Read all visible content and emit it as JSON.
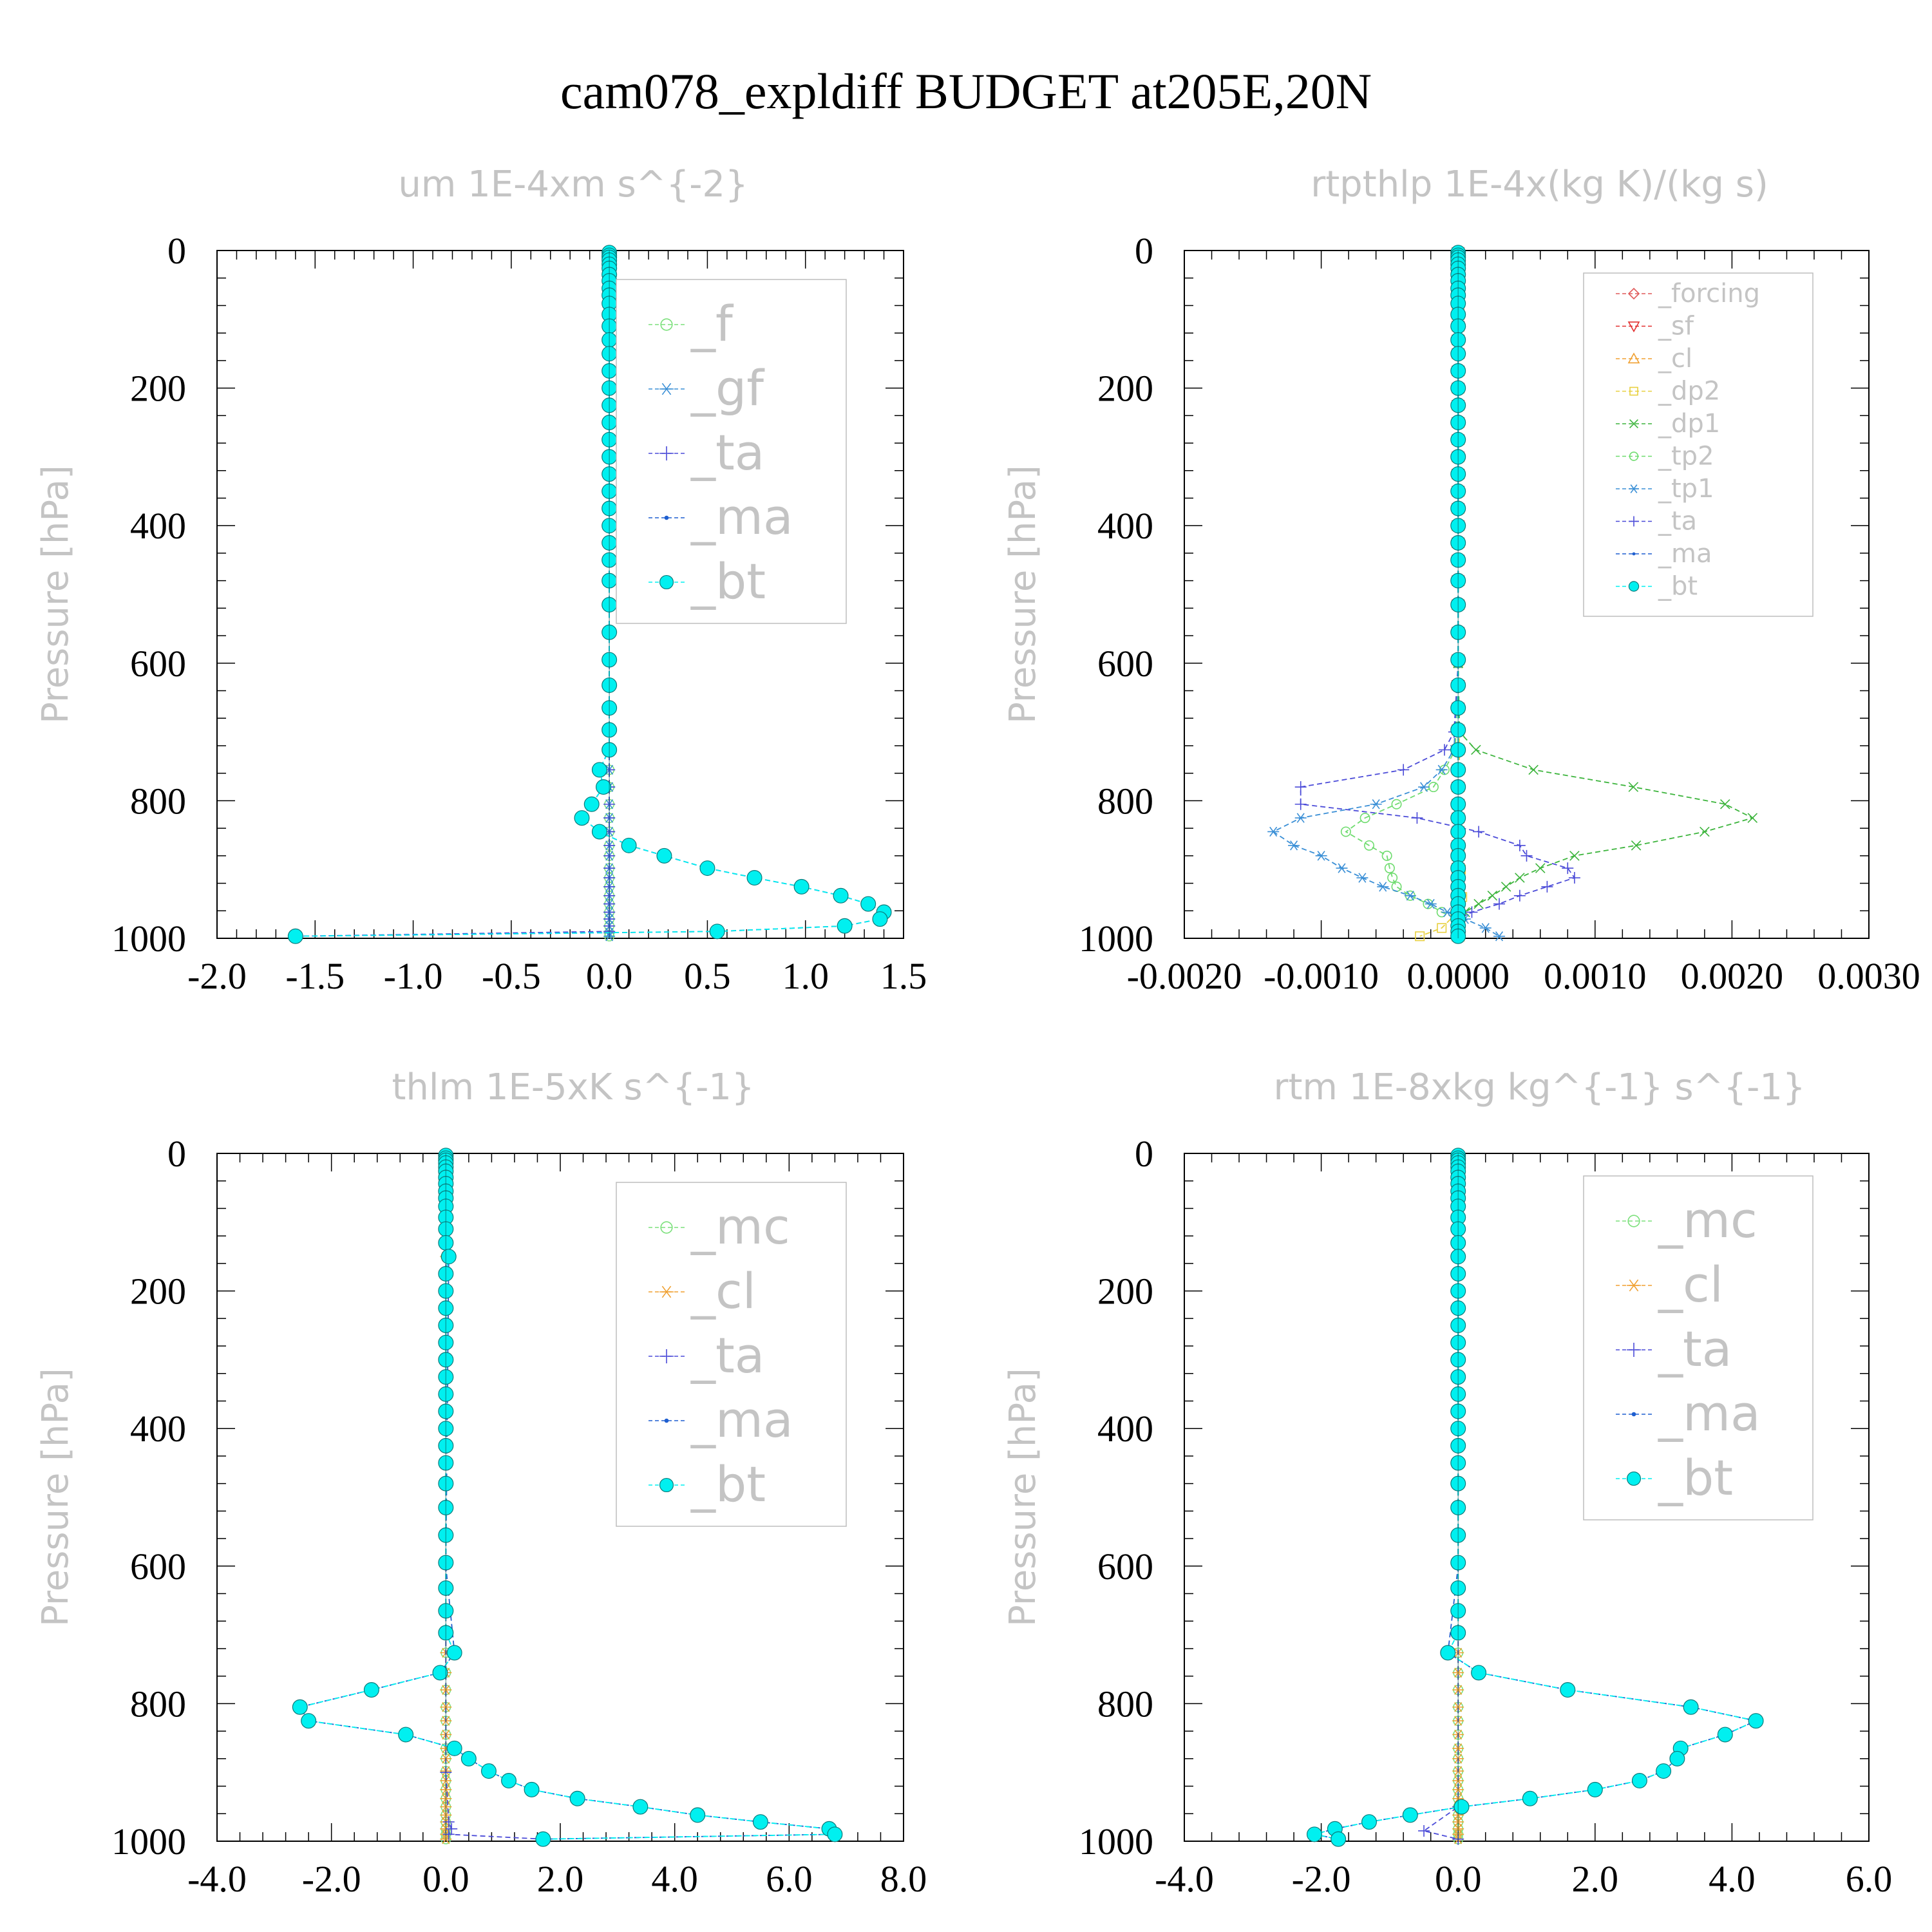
{
  "figure_title": "cam078_expldiff  BUDGET at205E,20N",
  "colors": {
    "_f": "#7be07b",
    "_gf": "#3a8fd6",
    "_ta": "#4b4bd8",
    "_ma": "#1f5fd0",
    "_bt": "#00f0f0",
    "_forcing": "#e05a5a",
    "_sf": "#e23030",
    "_cl": "#f0a030",
    "_dp2": "#e8d040",
    "_dp1": "#3cb43c",
    "_tp2": "#6fdc6f",
    "_tp1": "#3a8fd6",
    "_mc": "#7be07b"
  },
  "chart_data": [
    {
      "type": "line",
      "title": "um   1E-4xm s^{-2}",
      "ylabel": "Pressure [hPa]",
      "xlim": [
        -2.0,
        1.5
      ],
      "ylim": [
        1000,
        0
      ],
      "xticks": [
        "-2.0",
        "-1.5",
        "-1.0",
        "-0.5",
        "0.0",
        "0.5",
        "1.0",
        "1.5"
      ],
      "yticks": [
        "0",
        "200",
        "400",
        "600",
        "800",
        "1000"
      ],
      "legend_position": "top-right",
      "p_levels": [
        3,
        7,
        10,
        14,
        20,
        26,
        35,
        44,
        55,
        65,
        77,
        93,
        110,
        130,
        150,
        175,
        200,
        225,
        250,
        275,
        300,
        325,
        350,
        375,
        400,
        425,
        450,
        480,
        515,
        555,
        595,
        632,
        665,
        697,
        726,
        755,
        780,
        805,
        825,
        845,
        865,
        880,
        898,
        912,
        925,
        938,
        950,
        962,
        972,
        982,
        992,
        997
      ],
      "series": [
        {
          "name": "_f",
          "marker": "circle-open",
          "values": "zero"
        },
        {
          "name": "_gf",
          "marker": "asterisk",
          "values": "zero"
        },
        {
          "name": "_ta",
          "marker": "plus",
          "p": [
            3,
            200,
            400,
            600,
            725,
            755,
            780,
            805,
            825,
            845,
            865,
            880,
            898,
            912,
            925,
            938,
            950,
            962,
            972,
            982,
            990,
            997
          ],
          "x": [
            0,
            0,
            0,
            0,
            0,
            0,
            0,
            0,
            0,
            0,
            0,
            0,
            0,
            0,
            0,
            0,
            0,
            0,
            0,
            0,
            0,
            -1.6
          ]
        },
        {
          "name": "_ma",
          "marker": "dot",
          "p": [
            3,
            200,
            400,
            600,
            725,
            755,
            780,
            805,
            825,
            845,
            865,
            880,
            898,
            912,
            925,
            938,
            950,
            962,
            972,
            982,
            990,
            997
          ],
          "x": [
            0,
            0,
            0,
            0,
            0,
            -0.05,
            -0.03,
            -0.09,
            -0.14,
            -0.05,
            0.1,
            0.28,
            0.5,
            0.74,
            0.98,
            1.18,
            1.32,
            1.4,
            1.38,
            1.2,
            0.55,
            -1.6
          ]
        },
        {
          "name": "_bt",
          "marker": "filled-circle",
          "p": [
            3,
            7,
            10,
            14,
            20,
            26,
            35,
            44,
            55,
            65,
            77,
            93,
            110,
            130,
            150,
            175,
            200,
            225,
            250,
            275,
            300,
            325,
            350,
            375,
            400,
            425,
            450,
            480,
            515,
            555,
            595,
            632,
            665,
            697,
            726,
            755,
            780,
            805,
            825,
            845,
            865,
            880,
            898,
            912,
            925,
            938,
            950,
            962,
            972,
            982,
            990,
            997
          ],
          "x": [
            0,
            0,
            0,
            0,
            0,
            0,
            0,
            0,
            0,
            0,
            0,
            0,
            0,
            0,
            0,
            0,
            0,
            0,
            0,
            0,
            0,
            0,
            0,
            0,
            0,
            0,
            0,
            0,
            0,
            0,
            0,
            0,
            0,
            0,
            0,
            -0.05,
            -0.03,
            -0.09,
            -0.14,
            -0.05,
            0.1,
            0.28,
            0.5,
            0.74,
            0.98,
            1.18,
            1.32,
            1.4,
            1.38,
            1.2,
            0.55,
            -1.6
          ]
        }
      ]
    },
    {
      "type": "line",
      "title": "rtpthlp   1E-4x(kg K)/(kg s)",
      "ylabel": "Pressure [hPa]",
      "xlim": [
        -0.002,
        0.003
      ],
      "ylim": [
        1000,
        0
      ],
      "xticks": [
        "-0.0020",
        "-0.0010",
        "0.0000",
        "0.0010",
        "0.0020",
        "0.0030"
      ],
      "yticks": [
        "0",
        "200",
        "400",
        "600",
        "800",
        "1000"
      ],
      "legend_position": "top-right",
      "p_levels": [
        3,
        7,
        10,
        14,
        20,
        26,
        35,
        44,
        55,
        65,
        77,
        93,
        110,
        130,
        150,
        175,
        200,
        225,
        250,
        275,
        300,
        325,
        350,
        375,
        400,
        425,
        450,
        480,
        515,
        555,
        595,
        632,
        665,
        697,
        726,
        755,
        780,
        805,
        825,
        845,
        865,
        880,
        898,
        912,
        925,
        938,
        950,
        962,
        972,
        982,
        990,
        997
      ],
      "series": [
        {
          "name": "_forcing",
          "marker": "diamond",
          "values": "zero"
        },
        {
          "name": "_sf",
          "marker": "triangle-down",
          "values": "zero"
        },
        {
          "name": "_cl",
          "marker": "triangle-up",
          "values": "zero"
        },
        {
          "name": "_dp2",
          "marker": "square",
          "p": [
            3,
            600,
            900,
            940,
            965,
            985,
            997
          ],
          "x": [
            0,
            0,
            2e-05,
            3e-05,
            -2e-05,
            -0.00012,
            -0.00028
          ]
        },
        {
          "name": "_dp1",
          "marker": "cross",
          "p": [
            3,
            600,
            700,
            726,
            755,
            780,
            805,
            825,
            845,
            865,
            880,
            898,
            912,
            925,
            938,
            950,
            962,
            972,
            985,
            997
          ],
          "x": [
            0,
            0,
            1e-05,
            0.00013,
            0.00055,
            0.00128,
            0.00195,
            0.00215,
            0.0018,
            0.0013,
            0.00085,
            0.0006,
            0.00045,
            0.00035,
            0.00025,
            0.00015,
            5e-05,
            0,
            0,
            0
          ]
        },
        {
          "name": "_tp2",
          "marker": "circle-open",
          "p": [
            3,
            600,
            726,
            755,
            780,
            805,
            825,
            845,
            865,
            880,
            898,
            912,
            925,
            938,
            950,
            962,
            972,
            985,
            997
          ],
          "x": [
            0,
            0,
            -2e-05,
            -0.0001,
            -0.00018,
            -0.00045,
            -0.00068,
            -0.00082,
            -0.00065,
            -0.00052,
            -0.0005,
            -0.00048,
            -0.00045,
            -0.00035,
            -0.00022,
            -0.00012,
            0,
            0,
            0
          ]
        },
        {
          "name": "_tp1",
          "marker": "asterisk",
          "p": [
            3,
            600,
            726,
            755,
            780,
            805,
            825,
            845,
            865,
            880,
            898,
            912,
            925,
            938,
            950,
            962,
            972,
            985,
            997
          ],
          "x": [
            0,
            0,
            -3e-05,
            -0.00012,
            -0.00025,
            -0.0006,
            -0.00115,
            -0.00135,
            -0.0012,
            -0.001,
            -0.00085,
            -0.0007,
            -0.00055,
            -0.00035,
            -0.0002,
            -8e-05,
            5e-05,
            0.0002,
            0.0003
          ]
        },
        {
          "name": "_ta",
          "marker": "plus",
          "p": [
            3,
            600,
            700,
            726,
            755,
            780,
            805,
            825,
            845,
            865,
            880,
            898,
            912,
            925,
            938,
            950,
            962,
            972,
            985,
            997
          ],
          "x": [
            0,
            0,
            -3e-05,
            -0.0001,
            -0.0004,
            -0.00115,
            -0.00115,
            -0.0003,
            0.00015,
            0.00045,
            0.0005,
            0.0008,
            0.00085,
            0.00065,
            0.00045,
            0.0003,
            0.0001,
            0,
            0,
            0
          ]
        },
        {
          "name": "_ma",
          "marker": "dot",
          "values": "zero"
        },
        {
          "name": "_bt",
          "marker": "filled-circle",
          "values": "zero"
        }
      ]
    },
    {
      "type": "line",
      "title": "thlm   1E-5xK s^{-1}",
      "ylabel": "Pressure [hPa]",
      "xlim": [
        -4.0,
        8.0
      ],
      "ylim": [
        1000,
        0
      ],
      "xticks": [
        "-4.0",
        "-2.0",
        "0.0",
        "2.0",
        "4.0",
        "6.0",
        "8.0"
      ],
      "yticks": [
        "0",
        "200",
        "400",
        "600",
        "800",
        "1000"
      ],
      "legend_position": "top-right",
      "p_levels": [
        3,
        7,
        10,
        14,
        20,
        26,
        35,
        44,
        55,
        65,
        77,
        93,
        110,
        130,
        150,
        175,
        200,
        225,
        250,
        275,
        300,
        325,
        350,
        375,
        400,
        425,
        450,
        480,
        515,
        555,
        595,
        632,
        665,
        697,
        726,
        755,
        780,
        805,
        825,
        845,
        865,
        880,
        898,
        912,
        925,
        938,
        950,
        962,
        972,
        982,
        990,
        997
      ],
      "series": [
        {
          "name": "_mc",
          "marker": "circle-open",
          "values": "zero"
        },
        {
          "name": "_cl",
          "marker": "asterisk",
          "values": "zero"
        },
        {
          "name": "_ta",
          "marker": "plus",
          "p": [
            3,
            600,
            900,
            972,
            982,
            990,
            997
          ],
          "x": [
            0,
            0,
            0,
            0.05,
            0.1,
            0.05,
            1.7
          ]
        },
        {
          "name": "_ma",
          "marker": "dot",
          "p": [
            3,
            150,
            600,
            726,
            755,
            780,
            805,
            825,
            845,
            865,
            880,
            898,
            912,
            925,
            938,
            950,
            962,
            972,
            982,
            990,
            997
          ],
          "x": [
            0,
            0.05,
            0,
            0.15,
            -0.1,
            -1.3,
            -2.55,
            -2.4,
            -0.7,
            0.15,
            0.4,
            0.75,
            1.1,
            1.5,
            2.3,
            3.4,
            4.4,
            5.5,
            6.7,
            6.8,
            1.7
          ]
        },
        {
          "name": "_bt",
          "marker": "filled-circle",
          "p": [
            3,
            7,
            10,
            14,
            20,
            26,
            35,
            44,
            55,
            65,
            77,
            93,
            110,
            130,
            150,
            175,
            200,
            225,
            250,
            275,
            300,
            325,
            350,
            375,
            400,
            425,
            450,
            480,
            515,
            555,
            595,
            632,
            665,
            697,
            726,
            755,
            780,
            805,
            825,
            845,
            865,
            880,
            898,
            912,
            925,
            938,
            950,
            962,
            972,
            982,
            990,
            997
          ],
          "x": [
            0,
            0,
            0,
            0,
            0,
            0,
            0,
            0,
            0,
            0,
            0,
            0,
            0,
            0,
            0.05,
            0,
            0,
            0,
            0,
            0,
            0,
            0,
            0,
            0,
            0,
            0,
            0,
            0,
            0,
            0,
            0,
            0,
            0,
            0,
            0.15,
            -0.1,
            -1.3,
            -2.55,
            -2.4,
            -0.7,
            0.15,
            0.4,
            0.75,
            1.1,
            1.5,
            2.3,
            3.4,
            4.4,
            5.5,
            6.7,
            6.8,
            1.7
          ]
        }
      ]
    },
    {
      "type": "line",
      "title": "rtm   1E-8xkg kg^{-1} s^{-1}",
      "ylabel": "Pressure [hPa]",
      "xlim": [
        -4.0,
        6.0
      ],
      "ylim": [
        1000,
        0
      ],
      "xticks": [
        "-4.0",
        "-2.0",
        "0.0",
        "2.0",
        "4.0",
        "6.0"
      ],
      "yticks": [
        "0",
        "200",
        "400",
        "600",
        "800",
        "1000"
      ],
      "legend_position": "top-right",
      "p_levels": [
        3,
        7,
        10,
        14,
        20,
        26,
        35,
        44,
        55,
        65,
        77,
        93,
        110,
        130,
        150,
        175,
        200,
        225,
        250,
        275,
        300,
        325,
        350,
        375,
        400,
        425,
        450,
        480,
        515,
        555,
        595,
        632,
        665,
        697,
        726,
        755,
        780,
        805,
        825,
        845,
        865,
        880,
        898,
        912,
        925,
        938,
        950,
        962,
        972,
        982,
        990,
        997
      ],
      "series": [
        {
          "name": "_mc",
          "marker": "circle-open",
          "values": "zero"
        },
        {
          "name": "_cl",
          "marker": "asterisk",
          "values": "zero"
        },
        {
          "name": "_ta",
          "marker": "plus",
          "p": [
            3,
            600,
            950,
            985,
            997
          ],
          "x": [
            0,
            0,
            0,
            -0.5,
            0
          ]
        },
        {
          "name": "_ma",
          "marker": "dot",
          "p": [
            3,
            600,
            726,
            755,
            780,
            805,
            825,
            845,
            865,
            880,
            898,
            912,
            925,
            938,
            950,
            962,
            972,
            982,
            990,
            997
          ],
          "x": [
            0,
            0,
            -0.15,
            0.3,
            1.6,
            3.4,
            4.35,
            3.9,
            3.25,
            3.2,
            3.0,
            2.65,
            2.0,
            1.05,
            0.05,
            -0.7,
            -1.3,
            -1.8,
            -2.1,
            -1.75
          ]
        },
        {
          "name": "_bt",
          "marker": "filled-circle",
          "p": [
            3,
            7,
            10,
            14,
            20,
            26,
            35,
            44,
            55,
            65,
            77,
            93,
            110,
            130,
            150,
            175,
            200,
            225,
            250,
            275,
            300,
            325,
            350,
            375,
            400,
            425,
            450,
            480,
            515,
            555,
            595,
            632,
            665,
            697,
            726,
            755,
            780,
            805,
            825,
            845,
            865,
            880,
            898,
            912,
            925,
            938,
            950,
            962,
            972,
            982,
            990,
            997
          ],
          "x": [
            0,
            0,
            0,
            0,
            0,
            0,
            0,
            0,
            0,
            0,
            0,
            0,
            0,
            0,
            0,
            0,
            0,
            0,
            0,
            0,
            0,
            0,
            0,
            0,
            0,
            0,
            0,
            0,
            0,
            0,
            0,
            0,
            0,
            0,
            -0.15,
            0.3,
            1.6,
            3.4,
            4.35,
            3.9,
            3.25,
            3.2,
            3.0,
            2.65,
            2.0,
            1.05,
            0.05,
            -0.7,
            -1.3,
            -1.8,
            -2.1,
            -1.75
          ]
        }
      ]
    }
  ]
}
